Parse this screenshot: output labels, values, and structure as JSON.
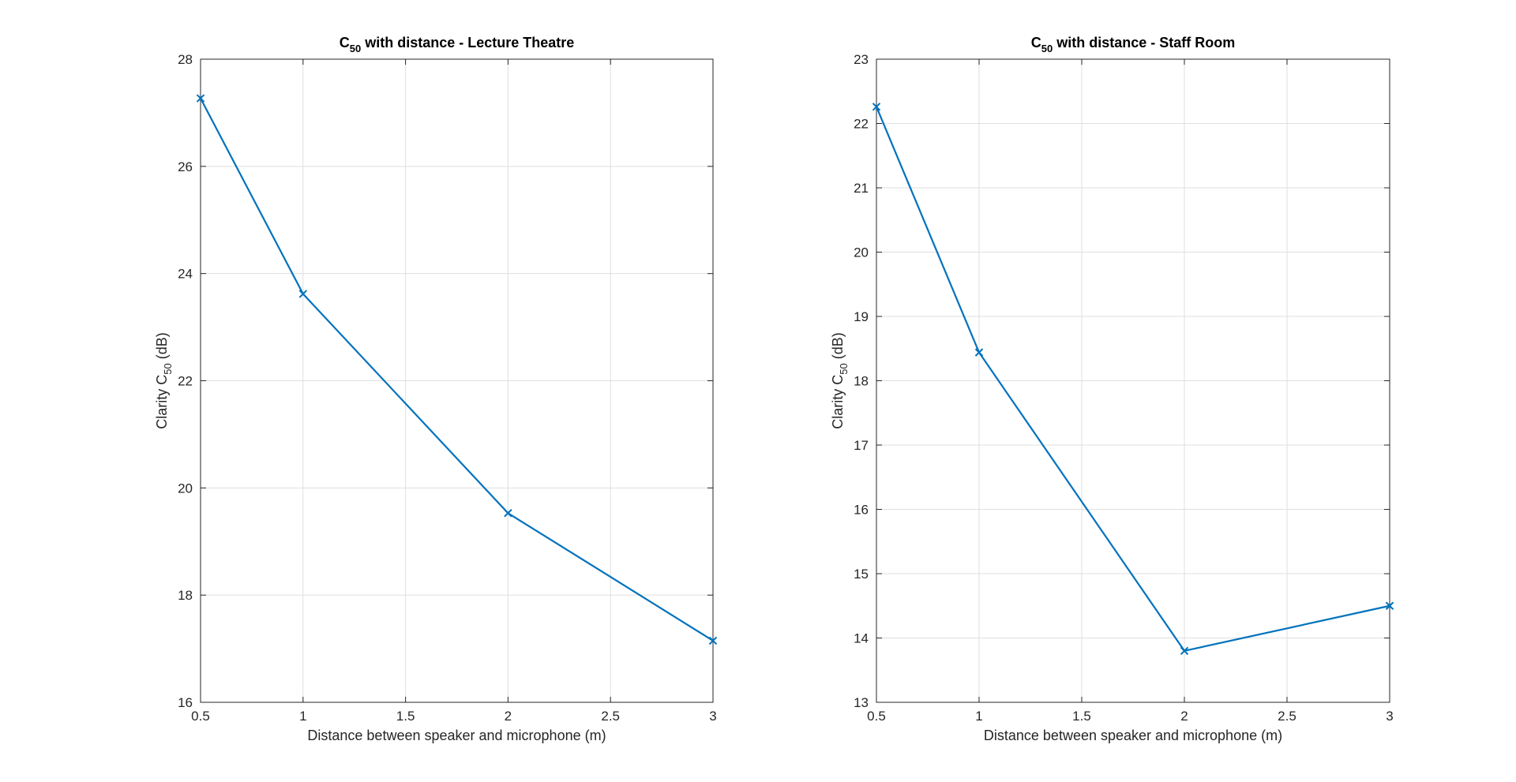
{
  "colors": {
    "series": "#0072BD",
    "axes": "#262626",
    "grid": "#DFDFDF"
  },
  "chart_data": [
    {
      "type": "line",
      "title_main": "C",
      "title_sub": "50",
      "title_rest": " with distance - Lecture Theatre",
      "xlabel": "Distance between speaker and microphone (m)",
      "ylabel_main": "Clarity C",
      "ylabel_sub": "50",
      "ylabel_rest": " (dB)",
      "xlim": [
        0.5,
        3
      ],
      "ylim": [
        16,
        28
      ],
      "xticks": [
        0.5,
        1,
        1.5,
        2,
        2.5,
        3
      ],
      "xtick_labels": [
        "0.5",
        "1",
        "1.5",
        "2",
        "2.5",
        "3"
      ],
      "yticks": [
        16,
        18,
        20,
        22,
        24,
        26,
        28
      ],
      "ytick_labels": [
        "16",
        "18",
        "20",
        "22",
        "24",
        "26",
        "28"
      ],
      "grid": true,
      "marker": "x",
      "x": [
        0.5,
        1,
        2,
        3
      ],
      "y": [
        27.27,
        23.62,
        19.53,
        17.15
      ]
    },
    {
      "type": "line",
      "title_main": "C",
      "title_sub": "50",
      "title_rest": " with distance - Staff Room",
      "xlabel": "Distance between speaker and microphone (m)",
      "ylabel_main": "Clarity C",
      "ylabel_sub": "50",
      "ylabel_rest": " (dB)",
      "xlim": [
        0.5,
        3
      ],
      "ylim": [
        13,
        23
      ],
      "xticks": [
        0.5,
        1,
        1.5,
        2,
        2.5,
        3
      ],
      "xtick_labels": [
        "0.5",
        "1",
        "1.5",
        "2",
        "2.5",
        "3"
      ],
      "yticks": [
        13,
        14,
        15,
        16,
        17,
        18,
        19,
        20,
        21,
        22,
        23
      ],
      "ytick_labels": [
        "13",
        "14",
        "15",
        "16",
        "17",
        "18",
        "19",
        "20",
        "21",
        "22",
        "23"
      ],
      "grid": true,
      "marker": "x",
      "x": [
        0.5,
        1,
        2,
        3
      ],
      "y": [
        22.26,
        18.44,
        13.8,
        14.5
      ]
    }
  ]
}
